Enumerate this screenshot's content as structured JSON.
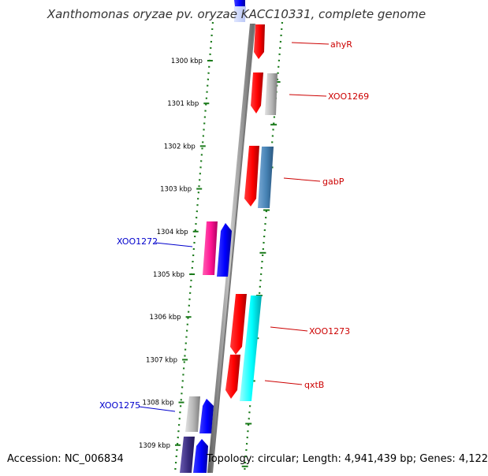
{
  "title": "Xanthomonas oryzae pv. oryzae KACC10331, complete genome",
  "accession": "Accession: NC_006834",
  "topology": "Topology: circular; Length: 4,941,439 bp; Genes: 4,122",
  "ruler": {
    "ticks": [
      "1300 kbp",
      "1301 kbp",
      "1302 kbp",
      "1303 kbp",
      "1304 kbp",
      "1305 kbp",
      "1306 kbp",
      "1307 kbp",
      "1308 kbp",
      "1309 kbp"
    ]
  },
  "genes": [
    {
      "name": "ahyR",
      "strand": "forward",
      "color": "#cc0000"
    },
    {
      "name": "XOO1269",
      "strand": "forward",
      "color": "#cc0000"
    },
    {
      "name": "gabP",
      "strand": "forward",
      "color": "#cc0000"
    },
    {
      "name": "XOO1272",
      "strand": "reverse",
      "color": "#0000cc"
    },
    {
      "name": "XOO1273",
      "strand": "forward",
      "color": "#cc0000"
    },
    {
      "name": "qxtB",
      "strand": "forward",
      "color": "#cc0000"
    },
    {
      "name": "XOO1275",
      "strand": "reverse",
      "color": "#0000cc"
    }
  ],
  "colors": {
    "red_gene": "#ff0000",
    "gray_gene": "#b0b0b0",
    "steel_gene": "#4682b4",
    "magenta_gene": "#ff1493",
    "blue_gene": "#0000ff",
    "cyan_gene": "#00ffff",
    "navy_gene": "#3a2d80",
    "backbone": "#808080",
    "tick_dots": "#1a7a1a"
  }
}
